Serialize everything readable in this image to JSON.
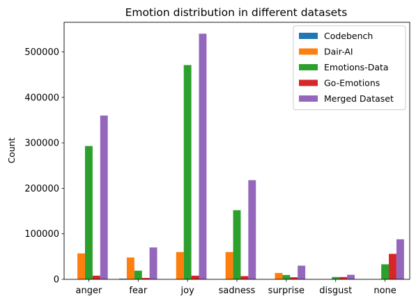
{
  "chart_data": {
    "type": "bar",
    "title": "Emotion distribution in different datasets",
    "xlabel": "",
    "ylabel": "Count",
    "ylim": [
      0,
      565000
    ],
    "yticks": [
      0,
      100000,
      200000,
      300000,
      400000,
      500000
    ],
    "grid": false,
    "legend_position": "top-right",
    "categories": [
      "anger",
      "fear",
      "joy",
      "sadness",
      "surprise",
      "disgust",
      "none"
    ],
    "series": [
      {
        "name": "Codebench",
        "color": "#1f77b4",
        "values": [
          0,
          1500,
          0,
          0,
          0,
          0,
          0
        ]
      },
      {
        "name": "Dair-AI",
        "color": "#ff7f0e",
        "values": [
          57000,
          48000,
          60000,
          60000,
          14000,
          0,
          0
        ]
      },
      {
        "name": "Emotions-Data",
        "color": "#2ca02c",
        "values": [
          293000,
          19000,
          471000,
          152000,
          9500,
          5000,
          33000
        ]
      },
      {
        "name": "Go-Emotions",
        "color": "#d62728",
        "values": [
          8000,
          3000,
          8000,
          7000,
          4500,
          5000,
          56000
        ]
      },
      {
        "name": "Merged Dataset",
        "color": "#9467bd",
        "values": [
          360000,
          70000,
          540000,
          218000,
          30000,
          10000,
          88000
        ]
      }
    ]
  }
}
